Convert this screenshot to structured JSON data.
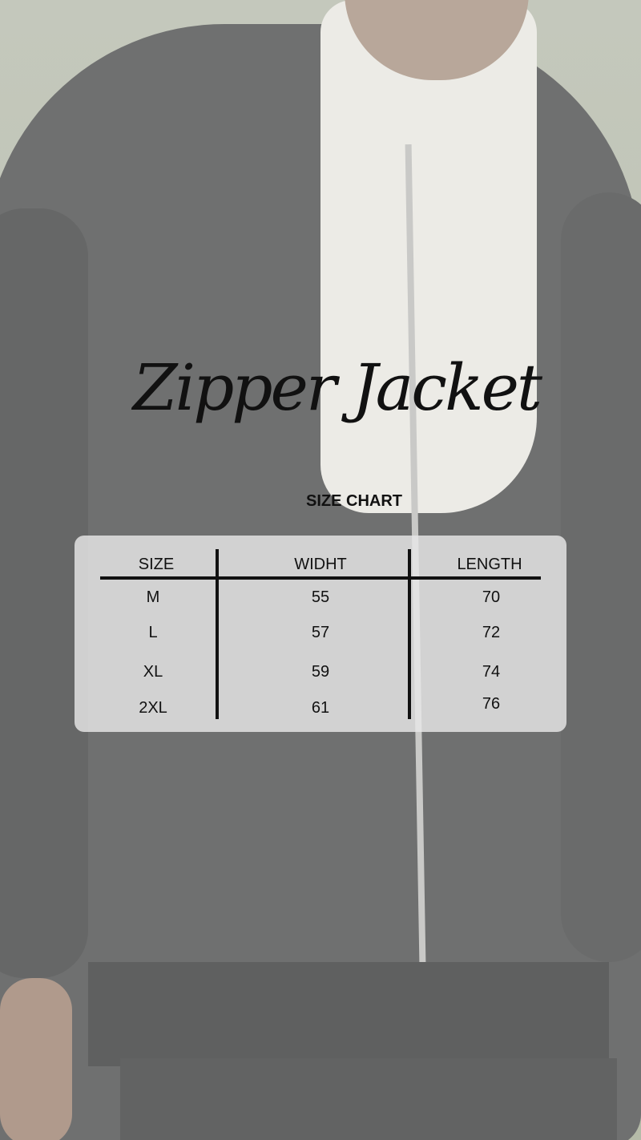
{
  "title": "Zipper Jacket",
  "subtitle": "SIZE CHART",
  "table": {
    "headers": [
      "SIZE",
      "WIDHT",
      "LENGTH"
    ],
    "rows": [
      [
        "M",
        "55",
        "70"
      ],
      [
        "L",
        "57",
        "72"
      ],
      [
        "XL",
        "59",
        "74"
      ],
      [
        "2XL",
        "61",
        "76"
      ]
    ]
  }
}
